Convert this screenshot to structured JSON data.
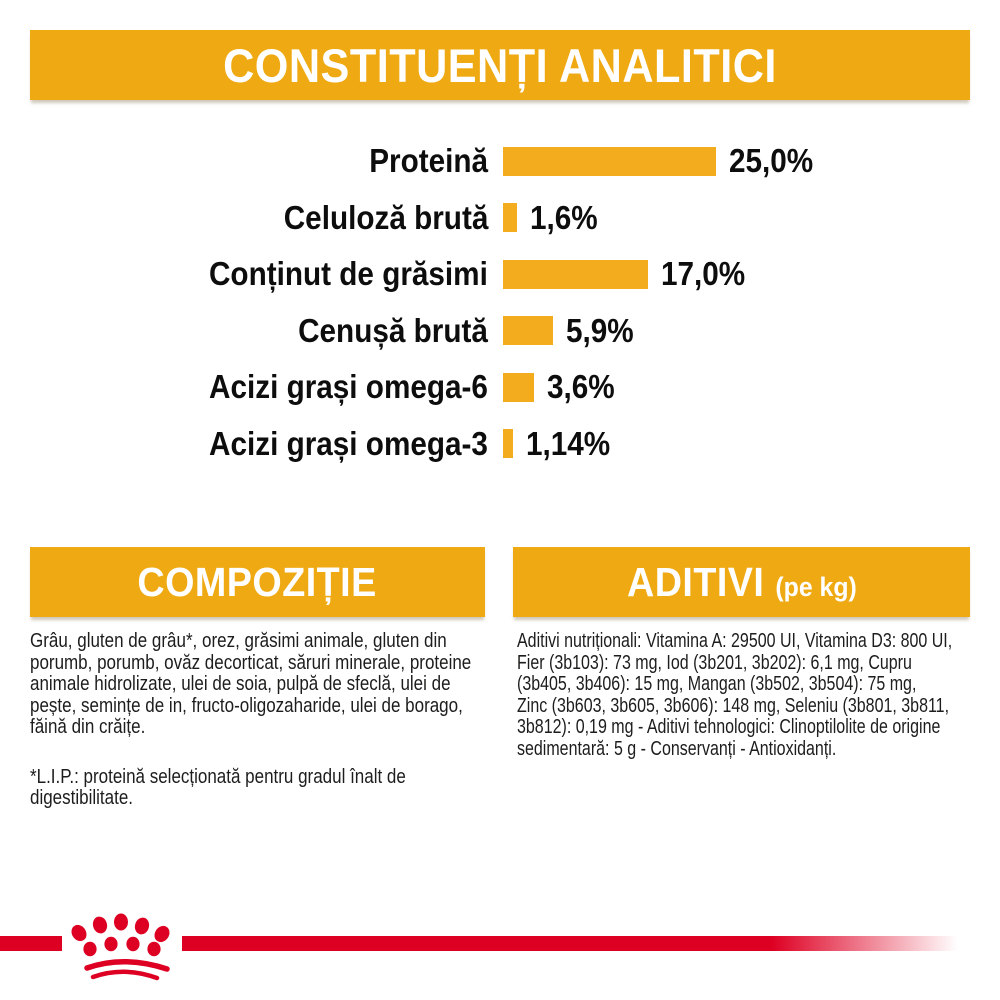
{
  "colors": {
    "banner_gold": "#EFA912",
    "bar_gold": "#F2AC1E",
    "brand_red": "#DE0023",
    "text_dark": "#1d1d1b",
    "banner_text": "#ffffff"
  },
  "header": {
    "title": "CONSTITUENȚI ANALITICI"
  },
  "chart_data": {
    "type": "bar",
    "orientation": "horizontal",
    "title": "CONSTITUENȚI ANALITICI",
    "categories": [
      "Proteină",
      "Celuloză brută",
      "Conținut de grăsimi",
      "Cenușă brută",
      "Acizi grași omega-6",
      "Acizi grași omega-3"
    ],
    "values": [
      25.0,
      1.6,
      17.0,
      5.9,
      3.6,
      1.14
    ],
    "value_labels": [
      "25,0%",
      "1,6%",
      "17,0%",
      "5,9%",
      "3,6%",
      "1,14%"
    ],
    "unit": "%",
    "xlim": [
      0,
      25
    ],
    "grid": false,
    "legend": false,
    "bar_color": "#F2AC1E"
  },
  "composition": {
    "heading": "COMPOZIȚIE",
    "lines": [
      "Grâu, gluten de grâu*, orez, grăsimi animale, gluten din",
      "porumb, porumb, ovăz decorticat, săruri minerale, proteine",
      "animale hidrolizate, ulei de soia, pulpă de sfeclă, ulei de",
      "pește, semințe de in, fructo-oligozaharide, ulei de borago,",
      "făină din crăițe."
    ],
    "footnote_lines": [
      "*L.I.P.: proteină selecționată pentru gradul înalt de",
      "digestibilitate."
    ]
  },
  "additives": {
    "heading": "ADITIVI",
    "heading_suffix": "(pe kg)",
    "lines": [
      "Aditivi nutriționali: Vitamina A: 29500 UI, Vitamina D3: 800 UI,",
      "Fier (3b103): 73 mg, Iod (3b201, 3b202): 6,1 mg, Cupru",
      "(3b405, 3b406): 15 mg, Mangan (3b502, 3b504): 75 mg,",
      "Zinc (3b603, 3b605, 3b606): 148 mg, Seleniu (3b801, 3b811,",
      "3b812): 0,19 mg - Aditivi tehnologici: Clinoptilolite de origine",
      "sedimentară: 5 g - Conservanți - Antioxidanți."
    ]
  },
  "footer": {
    "logo_icon": "royal-canin-crown"
  }
}
